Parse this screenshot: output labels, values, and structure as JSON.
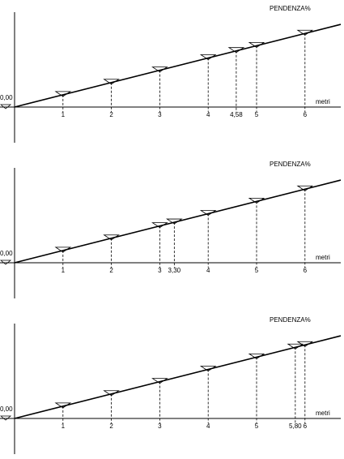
{
  "panels": [
    {
      "title": "PENDENZA%",
      "origin_label": "0,00",
      "axis_label": "metri",
      "ticks": [
        1,
        2,
        3,
        4,
        {
          "value": 4.58,
          "label": "4,58"
        },
        5,
        6
      ]
    },
    {
      "title": "PENDENZA%",
      "origin_label": "0,00",
      "axis_label": "metri",
      "ticks": [
        1,
        2,
        3,
        {
          "value": 3.3,
          "label": "3,30"
        },
        4,
        5,
        6
      ]
    },
    {
      "title": "PENDENZA%",
      "origin_label": "0,00",
      "axis_label": "metri",
      "ticks": [
        1,
        2,
        3,
        4,
        5,
        {
          "value": 5.8,
          "label": "5,80"
        },
        6
      ]
    }
  ]
}
